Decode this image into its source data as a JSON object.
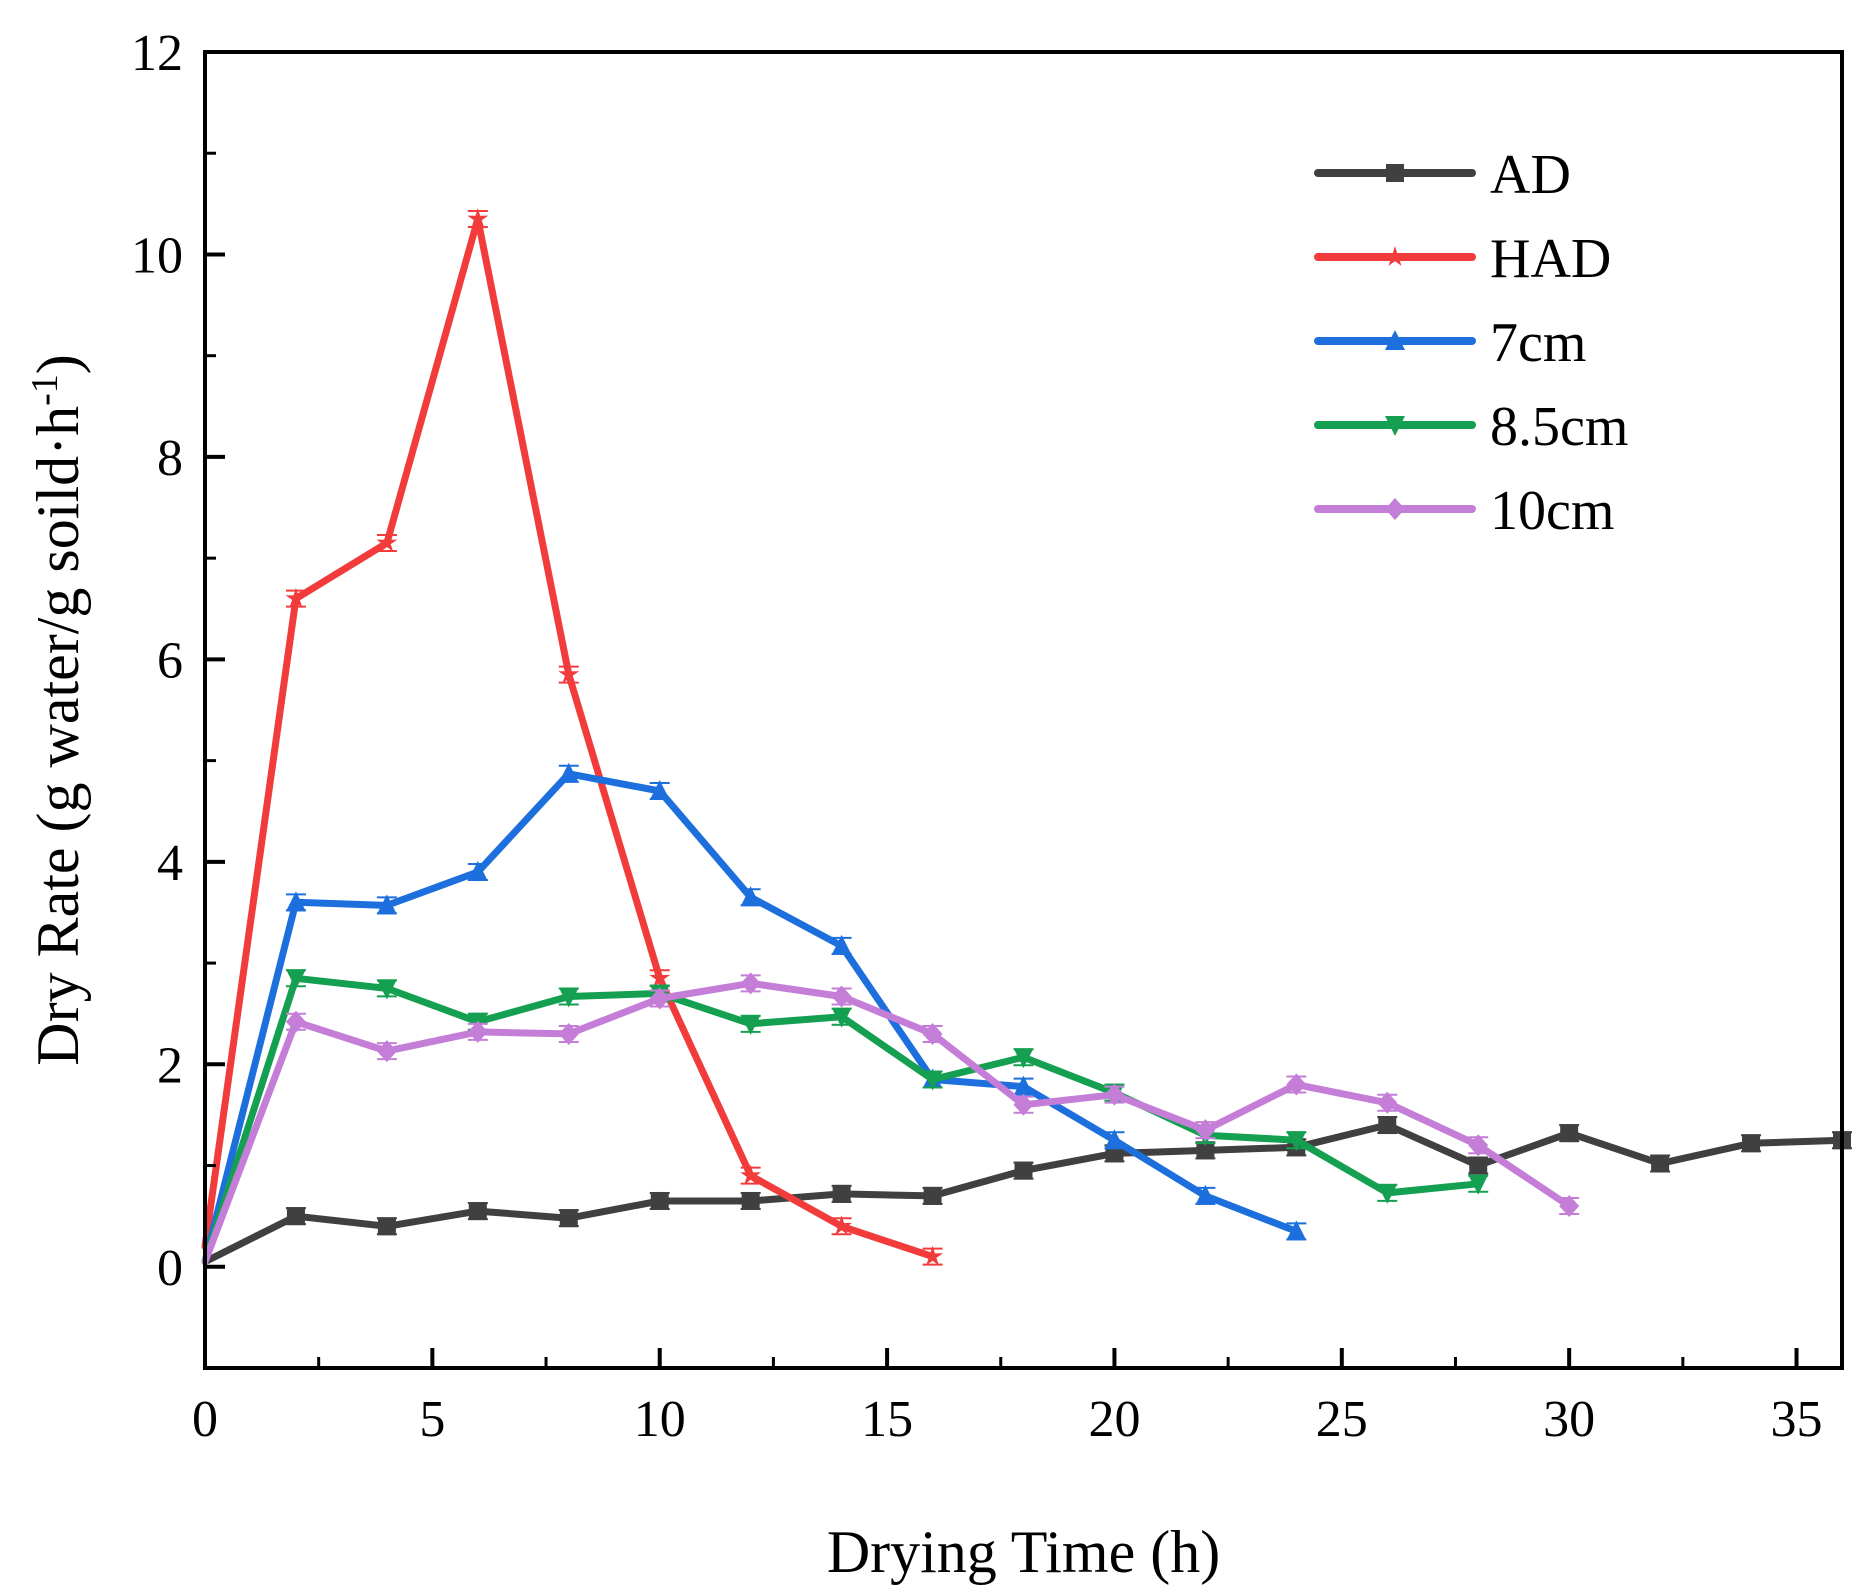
{
  "chart_data": {
    "type": "line",
    "xlabel": "Drying Time (h)",
    "ylabel": "Dry Rate (g water/g soild·h",
    "ylabel_sup": "-1",
    "ylabel_close": ")",
    "xlim": [
      0,
      36
    ],
    "ylim": [
      -1,
      12
    ],
    "xticks": [
      0,
      5,
      10,
      15,
      20,
      25,
      30,
      35
    ],
    "yticks": [
      0,
      2,
      4,
      6,
      8,
      10,
      12
    ],
    "grid": false,
    "legend_position": "top-right",
    "series": [
      {
        "name": "AD",
        "color": "#404040",
        "marker": "square",
        "x": [
          0,
          2,
          4,
          6,
          8,
          10,
          12,
          14,
          16,
          18,
          20,
          22,
          24,
          26,
          28,
          30,
          32,
          34,
          36
        ],
        "y": [
          0.05,
          0.5,
          0.4,
          0.55,
          0.48,
          0.65,
          0.65,
          0.72,
          0.7,
          0.95,
          1.12,
          1.15,
          1.18,
          1.4,
          1.0,
          1.32,
          1.02,
          1.22,
          1.25
        ]
      },
      {
        "name": "HAD",
        "color": "#f23c3c",
        "marker": "star",
        "x": [
          0,
          2,
          4,
          6,
          8,
          10,
          12,
          14,
          16
        ],
        "y": [
          0.2,
          6.6,
          7.15,
          10.35,
          5.85,
          2.85,
          0.9,
          0.4,
          0.1
        ]
      },
      {
        "name": "7cm",
        "color": "#1c6fdc",
        "marker": "triangle-up",
        "x": [
          0,
          2,
          4,
          6,
          8,
          10,
          12,
          14,
          16,
          18,
          20,
          22,
          24
        ],
        "y": [
          0.05,
          3.6,
          3.57,
          3.9,
          4.87,
          4.7,
          3.65,
          3.17,
          1.85,
          1.78,
          1.25,
          0.7,
          0.35
        ]
      },
      {
        "name": "8.5cm",
        "color": "#14a050",
        "marker": "triangle-down",
        "x": [
          0,
          2,
          4,
          6,
          8,
          10,
          12,
          14,
          16,
          18,
          20,
          22,
          24,
          26,
          28
        ],
        "y": [
          0.05,
          2.85,
          2.75,
          2.42,
          2.67,
          2.7,
          2.4,
          2.47,
          1.85,
          2.07,
          1.72,
          1.3,
          1.25,
          0.73,
          0.82
        ]
      },
      {
        "name": "10cm",
        "color": "#c47ed8",
        "marker": "diamond",
        "x": [
          0,
          2,
          4,
          6,
          8,
          10,
          12,
          14,
          16,
          18,
          20,
          22,
          24,
          26,
          28,
          30
        ],
        "y": [
          0.05,
          2.42,
          2.13,
          2.32,
          2.3,
          2.65,
          2.8,
          2.67,
          2.3,
          1.6,
          1.7,
          1.35,
          1.8,
          1.62,
          1.2,
          0.6
        ]
      }
    ]
  }
}
